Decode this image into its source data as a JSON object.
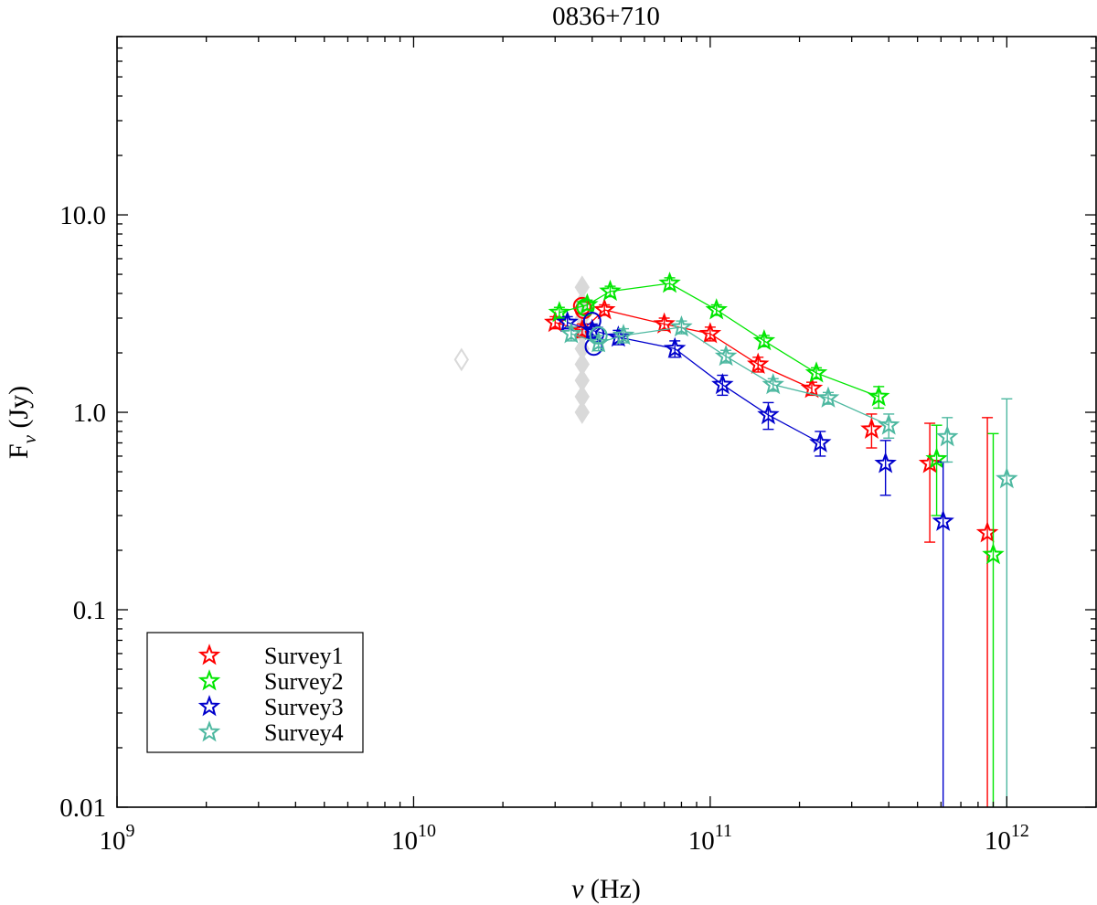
{
  "chart_data": {
    "type": "scatter",
    "title": "0836+710",
    "xlabel_prefix": "ν",
    "xlabel_unit": "(Hz)",
    "ylabel_main": "F",
    "ylabel_sub": "ν",
    "ylabel_unit": "(Jy)",
    "xscale": "log",
    "yscale": "log",
    "xlim": [
      1000000000.0,
      2000000000000.0
    ],
    "ylim": [
      0.01,
      80
    ],
    "x_ticks": [
      {
        "base": "10",
        "exp": "9",
        "value": 1000000000.0
      },
      {
        "base": "10",
        "exp": "10",
        "value": 10000000000.0
      },
      {
        "base": "10",
        "exp": "11",
        "value": 100000000000.0
      },
      {
        "base": "10",
        "exp": "12",
        "value": 1000000000000.0
      }
    ],
    "y_ticks": [
      {
        "label": "0.01",
        "value": 0.01
      },
      {
        "label": "0.1",
        "value": 0.1
      },
      {
        "label": "1.0",
        "value": 1.0
      },
      {
        "label": "10.0",
        "value": 10.0
      }
    ],
    "legend_position": "bottom-left",
    "series": [
      {
        "name": "Survey1",
        "color": "#ff0000",
        "points": [
          {
            "x": 30000000000.0,
            "y": 2.85,
            "lo": 2.65,
            "hi": 3.05
          },
          {
            "x": 37000000000.0,
            "y": 2.6,
            "lo": 2.4,
            "hi": 2.8
          },
          {
            "x": 44000000000.0,
            "y": 3.3,
            "lo": 3.1,
            "hi": 3.5
          },
          {
            "x": 70000000000.0,
            "y": 2.8,
            "lo": 2.6,
            "hi": 3.0
          },
          {
            "x": 100000000000.0,
            "y": 2.5,
            "lo": 2.3,
            "hi": 2.7
          },
          {
            "x": 145000000000.0,
            "y": 1.75,
            "lo": 1.6,
            "hi": 1.9
          },
          {
            "x": 220000000000.0,
            "y": 1.32,
            "lo": 1.22,
            "hi": 1.42
          },
          {
            "x": 350000000000.0,
            "y": 0.82,
            "lo": 0.66,
            "hi": 0.98
          },
          {
            "x": 550000000000.0,
            "y": 0.55,
            "lo": 0.22,
            "hi": 0.88
          },
          {
            "x": 860000000000.0,
            "y": 0.245,
            "lo": 0.0001,
            "hi": 0.94
          }
        ],
        "line_points": 7,
        "circles": [
          {
            "x": 37000000000.0,
            "y": 3.45
          },
          {
            "x": 37500000000.0,
            "y": 3.3
          }
        ]
      },
      {
        "name": "Survey2",
        "color": "#00e600",
        "points": [
          {
            "x": 31000000000.0,
            "y": 3.2,
            "lo": 3.0,
            "hi": 3.4
          },
          {
            "x": 38500000000.0,
            "y": 3.5,
            "lo": 3.3,
            "hi": 3.7
          },
          {
            "x": 46000000000.0,
            "y": 4.1,
            "lo": 3.85,
            "hi": 4.35
          },
          {
            "x": 73000000000.0,
            "y": 4.5,
            "lo": 4.2,
            "hi": 4.8
          },
          {
            "x": 105000000000.0,
            "y": 3.3,
            "lo": 3.1,
            "hi": 3.5
          },
          {
            "x": 152000000000.0,
            "y": 2.3,
            "lo": 2.15,
            "hi": 2.45
          },
          {
            "x": 228000000000.0,
            "y": 1.58,
            "lo": 1.48,
            "hi": 1.68
          },
          {
            "x": 370000000000.0,
            "y": 1.2,
            "lo": 1.05,
            "hi": 1.35
          },
          {
            "x": 580000000000.0,
            "y": 0.58,
            "lo": 0.3,
            "hi": 0.86
          },
          {
            "x": 900000000000.0,
            "y": 0.19,
            "lo": 0.0001,
            "hi": 0.78
          }
        ],
        "line_points": 8,
        "circles": [
          {
            "x": 38000000000.0,
            "y": 3.4
          }
        ]
      },
      {
        "name": "Survey3",
        "color": "#0000cc",
        "points": [
          {
            "x": 33000000000.0,
            "y": 2.85,
            "lo": 2.65,
            "hi": 3.05
          },
          {
            "x": 40000000000.0,
            "y": 2.6,
            "lo": 2.4,
            "hi": 2.8
          },
          {
            "x": 49000000000.0,
            "y": 2.4,
            "lo": 2.2,
            "hi": 2.6
          },
          {
            "x": 76000000000.0,
            "y": 2.1,
            "lo": 1.9,
            "hi": 2.3
          },
          {
            "x": 110000000000.0,
            "y": 1.38,
            "lo": 1.22,
            "hi": 1.54
          },
          {
            "x": 157000000000.0,
            "y": 0.97,
            "lo": 0.82,
            "hi": 1.12
          },
          {
            "x": 235000000000.0,
            "y": 0.7,
            "lo": 0.6,
            "hi": 0.8
          },
          {
            "x": 390000000000.0,
            "y": 0.55,
            "lo": 0.38,
            "hi": 0.72
          },
          {
            "x": 610000000000.0,
            "y": 0.28,
            "lo": 0.0001,
            "hi": 0.56
          }
        ],
        "line_points": 7,
        "circles": [
          {
            "x": 40500000000.0,
            "y": 2.15
          },
          {
            "x": 40000000000.0,
            "y": 2.9
          },
          {
            "x": 41000000000.0,
            "y": 2.5
          }
        ]
      },
      {
        "name": "Survey4",
        "color": "#4db8a0",
        "points": [
          {
            "x": 34000000000.0,
            "y": 2.5,
            "lo": 2.3,
            "hi": 2.7
          },
          {
            "x": 42000000000.0,
            "y": 2.25,
            "lo": 2.05,
            "hi": 2.45
          },
          {
            "x": 51000000000.0,
            "y": 2.45,
            "lo": 2.25,
            "hi": 2.65
          },
          {
            "x": 80000000000.0,
            "y": 2.7,
            "lo": 2.5,
            "hi": 2.9
          },
          {
            "x": 113000000000.0,
            "y": 1.92,
            "lo": 1.78,
            "hi": 2.06
          },
          {
            "x": 163000000000.0,
            "y": 1.38,
            "lo": 1.28,
            "hi": 1.48
          },
          {
            "x": 250000000000.0,
            "y": 1.18,
            "lo": 1.1,
            "hi": 1.26
          },
          {
            "x": 400000000000.0,
            "y": 0.86,
            "lo": 0.74,
            "hi": 0.98
          },
          {
            "x": 630000000000.0,
            "y": 0.75,
            "lo": 0.56,
            "hi": 0.94
          },
          {
            "x": 1000000000000.0,
            "y": 0.46,
            "lo": 0.0001,
            "hi": 1.17
          }
        ],
        "line_points": 8,
        "circles": [
          {
            "x": 42000000000.0,
            "y": 2.45
          }
        ]
      }
    ],
    "gray_markers": [
      {
        "x": 14500000000.0,
        "y": 1.85
      },
      {
        "x": 37000000000.0,
        "y": 1.0
      },
      {
        "x": 37000000000.0,
        "y": 1.2
      },
      {
        "x": 37000000000.0,
        "y": 1.45
      },
      {
        "x": 37000000000.0,
        "y": 1.75
      },
      {
        "x": 37000000000.0,
        "y": 2.1
      },
      {
        "x": 37000000000.0,
        "y": 2.5
      },
      {
        "x": 37000000000.0,
        "y": 3.0
      },
      {
        "x": 37000000000.0,
        "y": 3.6
      },
      {
        "x": 37000000000.0,
        "y": 4.3
      }
    ],
    "gray_color": "#d9d9d9"
  }
}
